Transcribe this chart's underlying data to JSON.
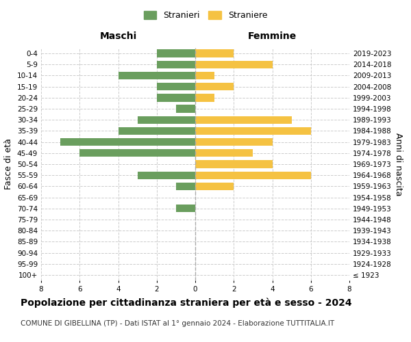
{
  "age_groups": [
    "100+",
    "95-99",
    "90-94",
    "85-89",
    "80-84",
    "75-79",
    "70-74",
    "65-69",
    "60-64",
    "55-59",
    "50-54",
    "45-49",
    "40-44",
    "35-39",
    "30-34",
    "25-29",
    "20-24",
    "15-19",
    "10-14",
    "5-9",
    "0-4"
  ],
  "birth_years": [
    "≤ 1923",
    "1924-1928",
    "1929-1933",
    "1934-1938",
    "1939-1943",
    "1944-1948",
    "1949-1953",
    "1954-1958",
    "1959-1963",
    "1964-1968",
    "1969-1973",
    "1974-1978",
    "1979-1983",
    "1984-1988",
    "1989-1993",
    "1994-1998",
    "1999-2003",
    "2004-2008",
    "2009-2013",
    "2014-2018",
    "2019-2023"
  ],
  "maschi": [
    0,
    0,
    0,
    0,
    0,
    0,
    1,
    0,
    1,
    3,
    0,
    6,
    7,
    4,
    3,
    1,
    2,
    2,
    4,
    2,
    2
  ],
  "femmine": [
    0,
    0,
    0,
    0,
    0,
    0,
    0,
    0,
    2,
    6,
    4,
    3,
    4,
    6,
    5,
    0,
    1,
    2,
    1,
    4,
    2
  ],
  "male_color": "#6a9e5e",
  "female_color": "#f5c242",
  "background_color": "#ffffff",
  "grid_color": "#cccccc",
  "title": "Popolazione per cittadinanza straniera per età e sesso - 2024",
  "subtitle": "COMUNE DI GIBELLINA (TP) - Dati ISTAT al 1° gennaio 2024 - Elaborazione TUTTITALIA.IT",
  "xlabel_left": "Maschi",
  "xlabel_right": "Femmine",
  "ylabel_left": "Fasce di età",
  "ylabel_right": "Anni di nascita",
  "legend_male": "Stranieri",
  "legend_female": "Straniere",
  "xlim": 8,
  "title_fontsize": 10,
  "subtitle_fontsize": 7.5,
  "axis_fontsize": 9,
  "tick_fontsize": 7.5,
  "header_fontsize": 10
}
